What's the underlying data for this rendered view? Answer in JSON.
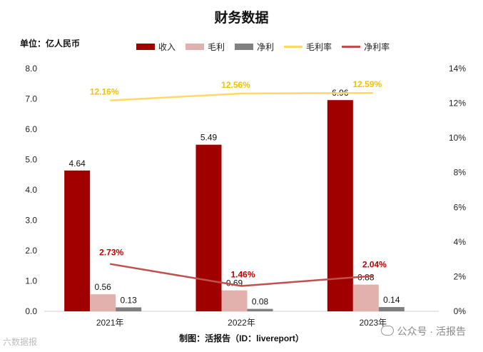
{
  "page": {
    "title": "财务数据",
    "unit_label": "单位：亿人民币",
    "credit": "制图：活报告（ID：livereport）",
    "watermark_right": "公众号 · 活报告",
    "watermark_left": "六数据报"
  },
  "colors": {
    "revenue": "#a00000",
    "gross": "#e2b1ae",
    "net": "#808080",
    "gross_margin": "#ffd966",
    "net_margin": "#c0504d",
    "gross_margin_label": "#f2c200",
    "net_margin_label": "#c00000"
  },
  "chart_data": {
    "type": "bar",
    "title": "财务数据",
    "categories": [
      "2021年",
      "2022年",
      "2023年"
    ],
    "series": [
      {
        "name": "收入",
        "kind": "bar",
        "axis": "left",
        "values": [
          4.64,
          5.49,
          6.96
        ],
        "labels": [
          "4.64",
          "5.49",
          "6.96"
        ]
      },
      {
        "name": "毛利",
        "kind": "bar",
        "axis": "left",
        "values": [
          0.56,
          0.69,
          0.88
        ],
        "labels": [
          "0.56",
          "0.69",
          "0.88"
        ]
      },
      {
        "name": "净利",
        "kind": "bar",
        "axis": "left",
        "values": [
          0.13,
          0.08,
          0.14
        ],
        "labels": [
          "0.13",
          "0.08",
          "0.14"
        ]
      },
      {
        "name": "毛利率",
        "kind": "line",
        "axis": "right",
        "values": [
          12.16,
          12.56,
          12.59
        ],
        "labels": [
          "12.16%",
          "12.56%",
          "12.59%"
        ]
      },
      {
        "name": "净利率",
        "kind": "line",
        "axis": "right",
        "values": [
          2.73,
          1.46,
          2.04
        ],
        "labels": [
          "2.73%",
          "1.46%",
          "2.04%"
        ]
      }
    ],
    "left_axis": {
      "min": 0,
      "max": 8,
      "ticks": [
        "0.0",
        "1.0",
        "2.0",
        "3.0",
        "4.0",
        "5.0",
        "6.0",
        "7.0",
        "8.0"
      ]
    },
    "right_axis": {
      "min": 0,
      "max": 14,
      "ticks": [
        "0%",
        "2%",
        "4%",
        "6%",
        "8%",
        "10%",
        "12%",
        "14%"
      ]
    },
    "ylabel": "单位：亿人民币",
    "grid": false,
    "legend_position": "top"
  }
}
